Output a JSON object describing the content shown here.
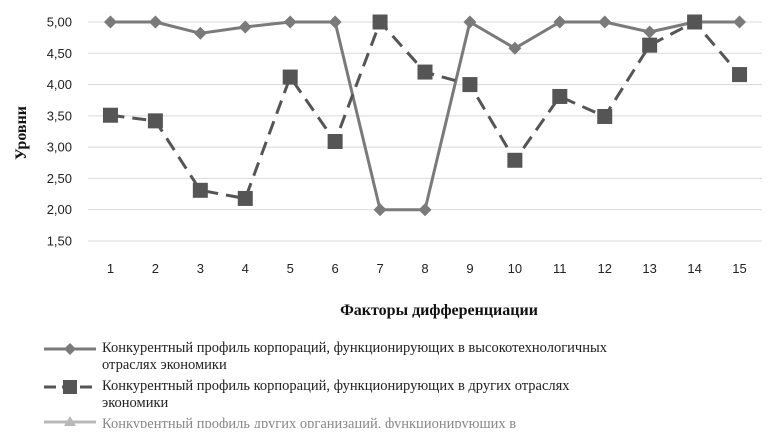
{
  "chart_data": {
    "type": "line",
    "title": "",
    "xlabel": "Факторы дифференциации",
    "ylabel": "Уровни",
    "x": [
      "1",
      "2",
      "3",
      "4",
      "5",
      "6",
      "7",
      "8",
      "9",
      "10",
      "11",
      "12",
      "13",
      "14",
      "15"
    ],
    "ylim": [
      1.5,
      5.0
    ],
    "yticks": [
      "1,50",
      "2,00",
      "2,50",
      "3,00",
      "3,50",
      "4,00",
      "4,50",
      "5,00"
    ],
    "grid": true,
    "legend_position": "bottom",
    "series": [
      {
        "name": "Конкурентный профиль корпораций, функционирующих в высокотехнологичных отраслях экономики",
        "name_line1": "Конкурентный профиль корпораций, функционирующих в высокотехнологичных",
        "name_line2": "отраслях экономики",
        "values": [
          5.0,
          5.0,
          4.82,
          4.92,
          5.0,
          5.0,
          2.0,
          2.0,
          5.0,
          4.58,
          5.0,
          5.0,
          4.84,
          5.0,
          5.0
        ],
        "color": "#7a7a7a",
        "marker": "diamond",
        "line": "solid"
      },
      {
        "name": "Конкурентный профиль корпораций, функционирующих  в других отраслях экономики",
        "name_line1": "Конкурентный профиль корпораций, функционирующих  в других отраслях",
        "name_line2": "экономики",
        "values": [
          3.51,
          3.42,
          2.31,
          2.18,
          4.12,
          3.09,
          5.0,
          4.2,
          4.0,
          2.79,
          3.81,
          3.49,
          4.63,
          5.0,
          4.16
        ],
        "color": "#555555",
        "marker": "square",
        "line": "dashed"
      },
      {
        "name_line1": "Конкурентный профиль других организаций, функционирующих в",
        "color": "#b8b8b8",
        "marker": "triangle",
        "line": "solid"
      }
    ]
  }
}
